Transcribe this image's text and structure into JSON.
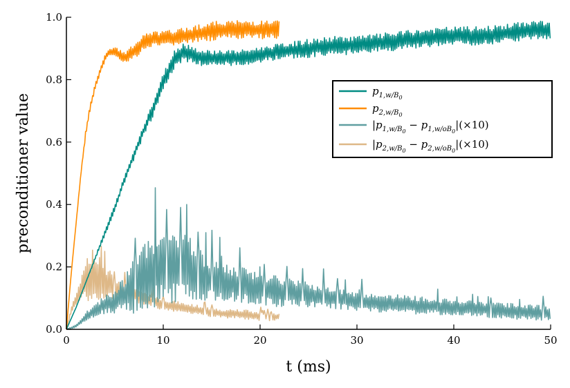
{
  "chart_data": {
    "type": "line",
    "title": "",
    "xlabel": "t (ms)",
    "ylabel": "preconditioner value",
    "xlim": [
      0,
      50
    ],
    "ylim": [
      0,
      1.0
    ],
    "xticks": [
      0,
      10,
      20,
      30,
      40,
      50
    ],
    "xtick_labels": [
      "0",
      "10",
      "20",
      "30",
      "40",
      "50"
    ],
    "yticks": [
      0.0,
      0.2,
      0.4,
      0.6,
      0.8,
      1.0
    ],
    "ytick_labels": [
      "0.0",
      "0.2",
      "0.4",
      "0.6",
      "0.8",
      "1.0"
    ],
    "grid": false,
    "legend_position": "right",
    "series": [
      {
        "name": "p1,w/B0",
        "legend_label": "p_{1,w/B_0}",
        "legend_main": "p",
        "legend_sub": "1,w/B",
        "legend_sub2": "0",
        "color": "#008b83",
        "x": [
          0,
          1,
          2,
          3,
          4,
          5,
          6,
          7,
          8,
          9,
          10,
          11,
          12,
          13,
          14,
          15,
          16,
          18,
          20,
          22,
          25,
          28,
          30,
          33,
          36,
          40,
          43,
          46,
          48,
          50
        ],
        "y": [
          0,
          0.07,
          0.15,
          0.23,
          0.31,
          0.39,
          0.48,
          0.56,
          0.64,
          0.71,
          0.79,
          0.86,
          0.89,
          0.88,
          0.87,
          0.87,
          0.87,
          0.87,
          0.88,
          0.89,
          0.9,
          0.91,
          0.91,
          0.92,
          0.93,
          0.94,
          0.94,
          0.95,
          0.96,
          0.96
        ],
        "oscillation": [
          0,
          0,
          0,
          0.005,
          0.01,
          0.01,
          0.012,
          0.015,
          0.02,
          0.025,
          0.03,
          0.03,
          0.03,
          0.03,
          0.025,
          0.025,
          0.025,
          0.025,
          0.025,
          0.025,
          0.03,
          0.03,
          0.03,
          0.03,
          0.03,
          0.03,
          0.03,
          0.03,
          0.03,
          0.03
        ]
      },
      {
        "name": "p2,w/B0",
        "legend_label": "p_{2,w/B_0}",
        "legend_main": "p",
        "legend_sub": "2,w/B",
        "legend_sub2": "0",
        "color": "#ff8c00",
        "x": [
          0,
          0.5,
          1,
          1.5,
          2,
          2.5,
          3,
          3.5,
          4,
          4.5,
          5,
          6,
          7,
          8,
          9,
          10,
          12,
          14,
          16,
          18,
          20,
          22
        ],
        "y": [
          0,
          0.18,
          0.34,
          0.5,
          0.63,
          0.72,
          0.78,
          0.83,
          0.87,
          0.89,
          0.89,
          0.87,
          0.89,
          0.92,
          0.93,
          0.93,
          0.94,
          0.95,
          0.96,
          0.96,
          0.96,
          0.96
        ],
        "oscillation": [
          0,
          0,
          0,
          0.005,
          0.01,
          0.01,
          0.01,
          0.01,
          0.01,
          0.01,
          0.015,
          0.02,
          0.025,
          0.025,
          0.025,
          0.025,
          0.025,
          0.03,
          0.03,
          0.03,
          0.03,
          0.03
        ]
      },
      {
        "name": "|p1,w/B0 - p1,w/oB0| (x10)",
        "legend_label": "|p_{1,w/B_0} - p_{1,w/oB_0}|(×10)",
        "legend_pre": "|p",
        "legend_sub_a": "1,w/B",
        "legend_sub_a2": "0",
        "legend_mid": " − p",
        "legend_sub_b": "1,w/oB",
        "legend_sub_b2": "0",
        "legend_post": "|(×10)",
        "color": "#5f9ea0",
        "x": [
          0,
          1,
          2,
          3,
          4,
          5,
          6,
          7,
          8,
          9,
          10,
          11,
          12,
          13,
          14,
          15,
          16,
          18,
          20,
          22,
          25,
          28,
          30,
          35,
          40,
          45,
          50
        ],
        "y": [
          0,
          0.01,
          0.04,
          0.06,
          0.08,
          0.09,
          0.11,
          0.14,
          0.17,
          0.19,
          0.2,
          0.2,
          0.2,
          0.19,
          0.17,
          0.16,
          0.15,
          0.14,
          0.13,
          0.12,
          0.11,
          0.1,
          0.09,
          0.08,
          0.07,
          0.06,
          0.05
        ],
        "oscillation": [
          0,
          0.005,
          0.015,
          0.02,
          0.03,
          0.04,
          0.06,
          0.09,
          0.11,
          0.12,
          0.13,
          0.12,
          0.11,
          0.1,
          0.08,
          0.07,
          0.06,
          0.06,
          0.05,
          0.05,
          0.04,
          0.035,
          0.03,
          0.03,
          0.025,
          0.025,
          0.025
        ]
      },
      {
        "name": "|p2,w/B0 - p2,w/oB0| (x10)",
        "legend_label": "|p_{2,w/B_0} - p_{2,w/oB_0}|(×10)",
        "legend_pre": "|p",
        "legend_sub_a": "2,w/B",
        "legend_sub_a2": "0",
        "legend_mid": " − p",
        "legend_sub_b": "2,w/oB",
        "legend_sub_b2": "0",
        "legend_post": "|(×10)",
        "color": "#deb887",
        "x": [
          0,
          0.5,
          1,
          1.5,
          2,
          2.5,
          3,
          3.5,
          4,
          5,
          6,
          7,
          8,
          9,
          10,
          12,
          14,
          16,
          18,
          20,
          22
        ],
        "y": [
          0,
          0.06,
          0.1,
          0.13,
          0.16,
          0.17,
          0.17,
          0.16,
          0.15,
          0.13,
          0.12,
          0.11,
          0.1,
          0.09,
          0.08,
          0.07,
          0.06,
          0.05,
          0.05,
          0.04,
          0.04
        ],
        "oscillation": [
          0,
          0.01,
          0.02,
          0.04,
          0.08,
          0.09,
          0.08,
          0.07,
          0.06,
          0.04,
          0.03,
          0.025,
          0.02,
          0.02,
          0.02,
          0.015,
          0.015,
          0.015,
          0.015,
          0.015,
          0.01
        ]
      }
    ]
  }
}
